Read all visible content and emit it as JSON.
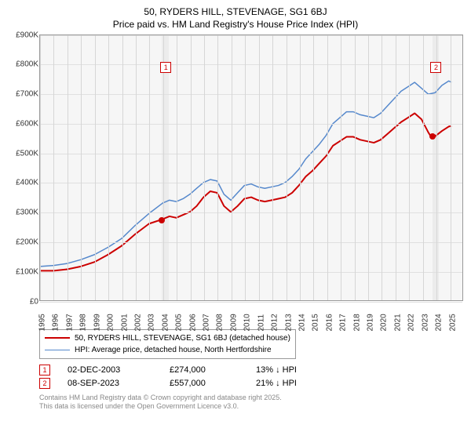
{
  "title_main": "50, RYDERS HILL, STEVENAGE, SG1 6BJ",
  "subtitle": "Price paid vs. HM Land Registry's House Price Index (HPI)",
  "chart": {
    "type": "line",
    "x_start": 1995,
    "x_end": 2026,
    "ylim": [
      0,
      900000
    ],
    "ytick_step": 100000,
    "yticks": [
      "£0",
      "£100K",
      "£200K",
      "£300K",
      "£400K",
      "£500K",
      "£600K",
      "£700K",
      "£800K",
      "£900K"
    ],
    "xticks": [
      1995,
      1996,
      1997,
      1998,
      1999,
      2000,
      2001,
      2002,
      2003,
      2004,
      2005,
      2006,
      2007,
      2008,
      2009,
      2010,
      2011,
      2012,
      2013,
      2014,
      2015,
      2016,
      2017,
      2018,
      2019,
      2020,
      2021,
      2022,
      2023,
      2024,
      2025
    ],
    "background_color": "#f6f6f6",
    "grid_color": "#e0e0e0",
    "shade_band1_start": 2003.92,
    "shade_band1_width_years": 0.5,
    "shade_band2_start": 2023.68,
    "shade_band2_width_years": 0.5,
    "series": [
      {
        "name": "price_paid",
        "label": "50, RYDERS HILL, STEVENAGE, SG1 6BJ (detached house)",
        "color": "#cc0000",
        "line_width": 2,
        "points": [
          [
            1995.0,
            100000
          ],
          [
            1996.0,
            100000
          ],
          [
            1997.0,
            105000
          ],
          [
            1998.0,
            115000
          ],
          [
            1999.0,
            130000
          ],
          [
            2000.0,
            155000
          ],
          [
            2001.0,
            185000
          ],
          [
            2002.0,
            225000
          ],
          [
            2003.0,
            260000
          ],
          [
            2003.92,
            274000
          ],
          [
            2004.5,
            285000
          ],
          [
            2005.0,
            280000
          ],
          [
            2005.5,
            290000
          ],
          [
            2006.0,
            300000
          ],
          [
            2006.5,
            320000
          ],
          [
            2007.0,
            350000
          ],
          [
            2007.5,
            370000
          ],
          [
            2008.0,
            365000
          ],
          [
            2008.5,
            320000
          ],
          [
            2009.0,
            300000
          ],
          [
            2009.5,
            320000
          ],
          [
            2010.0,
            345000
          ],
          [
            2010.5,
            350000
          ],
          [
            2011.0,
            340000
          ],
          [
            2011.5,
            335000
          ],
          [
            2012.0,
            340000
          ],
          [
            2012.5,
            345000
          ],
          [
            2013.0,
            350000
          ],
          [
            2013.5,
            365000
          ],
          [
            2014.0,
            390000
          ],
          [
            2014.5,
            420000
          ],
          [
            2015.0,
            440000
          ],
          [
            2015.5,
            465000
          ],
          [
            2016.0,
            490000
          ],
          [
            2016.5,
            525000
          ],
          [
            2017.0,
            540000
          ],
          [
            2017.5,
            555000
          ],
          [
            2018.0,
            555000
          ],
          [
            2018.5,
            545000
          ],
          [
            2019.0,
            540000
          ],
          [
            2019.5,
            535000
          ],
          [
            2020.0,
            545000
          ],
          [
            2020.5,
            565000
          ],
          [
            2021.0,
            585000
          ],
          [
            2021.5,
            605000
          ],
          [
            2022.0,
            620000
          ],
          [
            2022.5,
            635000
          ],
          [
            2023.0,
            615000
          ],
          [
            2023.5,
            570000
          ],
          [
            2023.68,
            557000
          ],
          [
            2024.0,
            557000
          ],
          [
            2024.5,
            575000
          ],
          [
            2025.0,
            590000
          ],
          [
            2025.2,
            592000
          ]
        ]
      },
      {
        "name": "hpi",
        "label": "HPI: Average price, detached house, North Hertfordshire",
        "color": "#5588cc",
        "line_width": 1.5,
        "points": [
          [
            1995.0,
            115000
          ],
          [
            1996.0,
            118000
          ],
          [
            1997.0,
            125000
          ],
          [
            1998.0,
            138000
          ],
          [
            1999.0,
            155000
          ],
          [
            2000.0,
            180000
          ],
          [
            2001.0,
            210000
          ],
          [
            2002.0,
            255000
          ],
          [
            2003.0,
            295000
          ],
          [
            2004.0,
            330000
          ],
          [
            2004.5,
            340000
          ],
          [
            2005.0,
            335000
          ],
          [
            2005.5,
            345000
          ],
          [
            2006.0,
            360000
          ],
          [
            2006.5,
            380000
          ],
          [
            2007.0,
            400000
          ],
          [
            2007.5,
            410000
          ],
          [
            2008.0,
            405000
          ],
          [
            2008.5,
            360000
          ],
          [
            2009.0,
            340000
          ],
          [
            2009.5,
            365000
          ],
          [
            2010.0,
            390000
          ],
          [
            2010.5,
            395000
          ],
          [
            2011.0,
            385000
          ],
          [
            2011.5,
            380000
          ],
          [
            2012.0,
            385000
          ],
          [
            2012.5,
            390000
          ],
          [
            2013.0,
            400000
          ],
          [
            2013.5,
            420000
          ],
          [
            2014.0,
            445000
          ],
          [
            2014.5,
            480000
          ],
          [
            2015.0,
            505000
          ],
          [
            2015.5,
            530000
          ],
          [
            2016.0,
            560000
          ],
          [
            2016.5,
            600000
          ],
          [
            2017.0,
            620000
          ],
          [
            2017.5,
            640000
          ],
          [
            2018.0,
            640000
          ],
          [
            2018.5,
            630000
          ],
          [
            2019.0,
            625000
          ],
          [
            2019.5,
            620000
          ],
          [
            2020.0,
            635000
          ],
          [
            2020.5,
            660000
          ],
          [
            2021.0,
            685000
          ],
          [
            2021.5,
            710000
          ],
          [
            2022.0,
            725000
          ],
          [
            2022.5,
            740000
          ],
          [
            2023.0,
            720000
          ],
          [
            2023.5,
            700000
          ],
          [
            2024.0,
            705000
          ],
          [
            2024.5,
            730000
          ],
          [
            2025.0,
            745000
          ],
          [
            2025.2,
            740000
          ]
        ]
      }
    ],
    "sale_markers": [
      {
        "n": "1",
        "x": 2003.92,
        "y": 274000,
        "label_x": 2004.2,
        "label_y": 810000
      },
      {
        "n": "2",
        "x": 2023.68,
        "y": 557000,
        "label_x": 2023.96,
        "label_y": 810000
      }
    ]
  },
  "legend": {
    "series1_label": "50, RYDERS HILL, STEVENAGE, SG1 6BJ (detached house)",
    "series2_label": "HPI: Average price, detached house, North Hertfordshire"
  },
  "sales": [
    {
      "n": "1",
      "date": "02-DEC-2003",
      "price": "£274,000",
      "pct": "13% ↓ HPI"
    },
    {
      "n": "2",
      "date": "08-SEP-2023",
      "price": "£557,000",
      "pct": "21% ↓ HPI"
    }
  ],
  "footer_line1": "Contains HM Land Registry data © Crown copyright and database right 2025.",
  "footer_line2": "This data is licensed under the Open Government Licence v3.0."
}
